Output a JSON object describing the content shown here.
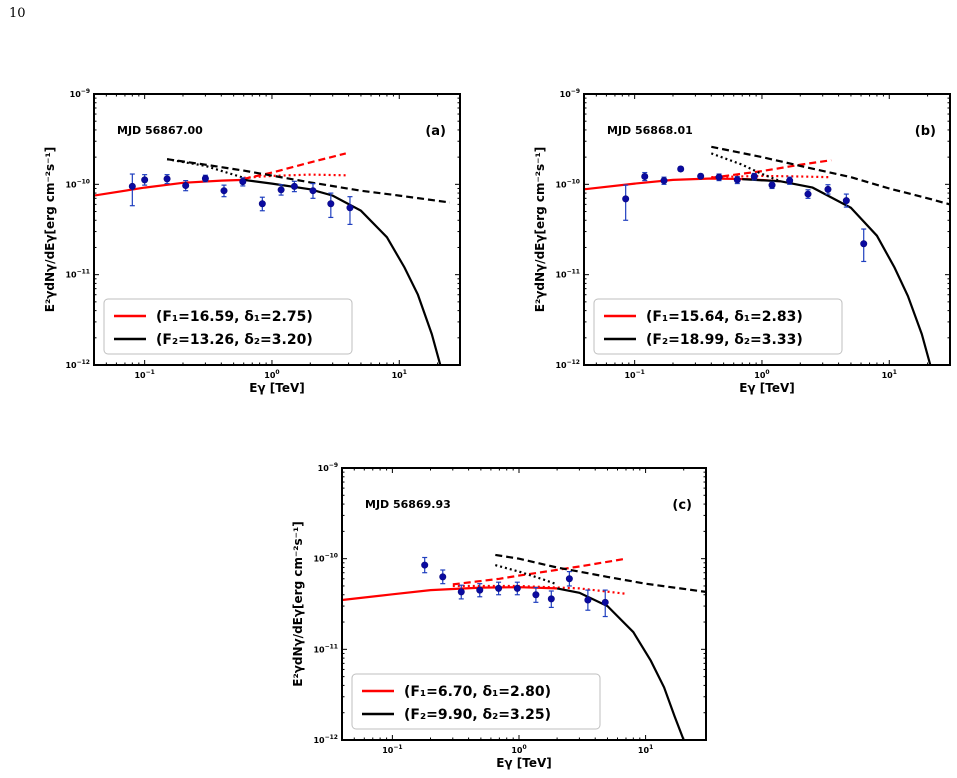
{
  "page_number": "10",
  "chart_data": [
    {
      "type": "scatter",
      "panel_label": "(a)",
      "annotation": "MJD 56867.00",
      "xlabel": "E_γ [TeV]",
      "ylabel": "E²_γ dN_γ/dE_γ [erg cm⁻² s⁻¹]",
      "xscale": "log",
      "yscale": "log",
      "xlim": [
        0.04,
        30
      ],
      "ylim": [
        1e-12,
        1e-09
      ],
      "x_ticks": [
        {
          "v": 0.1,
          "b": "10",
          "e": "−1"
        },
        {
          "v": 1,
          "b": "10",
          "e": "0"
        },
        {
          "v": 10,
          "b": "10",
          "e": "1"
        }
      ],
      "y_ticks": [
        {
          "v": 1e-12,
          "b": "10",
          "e": "−12"
        },
        {
          "v": 1e-11,
          "b": "10",
          "e": "−11"
        },
        {
          "v": 1e-10,
          "b": "10",
          "e": "−10"
        },
        {
          "v": 1e-09,
          "b": "10",
          "e": "−9"
        }
      ],
      "points": [
        {
          "x": 0.08,
          "y": 9.5e-11,
          "lo": 5.8e-11,
          "hi": 1.3e-10
        },
        {
          "x": 0.1,
          "y": 1.12e-10,
          "lo": 9.8e-11,
          "hi": 1.28e-10
        },
        {
          "x": 0.15,
          "y": 1.15e-10,
          "lo": 1.02e-10,
          "hi": 1.28e-10
        },
        {
          "x": 0.21,
          "y": 9.7e-11,
          "lo": 8.5e-11,
          "hi": 1.1e-10
        },
        {
          "x": 0.3,
          "y": 1.16e-10,
          "lo": 1.07e-10,
          "hi": 1.26e-10
        },
        {
          "x": 0.42,
          "y": 8.5e-11,
          "lo": 7.3e-11,
          "hi": 9.8e-11
        },
        {
          "x": 0.59,
          "y": 1.07e-10,
          "lo": 9.6e-11,
          "hi": 1.18e-10
        },
        {
          "x": 0.84,
          "y": 6.1e-11,
          "lo": 5.1e-11,
          "hi": 7.2e-11
        },
        {
          "x": 1.18,
          "y": 8.7e-11,
          "lo": 7.6e-11,
          "hi": 9.9e-11
        },
        {
          "x": 1.5,
          "y": 9.5e-11,
          "lo": 8.3e-11,
          "hi": 1.08e-10
        },
        {
          "x": 2.1,
          "y": 8.5e-11,
          "lo": 7e-11,
          "hi": 1.02e-10
        },
        {
          "x": 2.9,
          "y": 6.1e-11,
          "lo": 4.3e-11,
          "hi": 8e-11
        },
        {
          "x": 4.1,
          "y": 5.5e-11,
          "lo": 3.6e-11,
          "hi": 7.3e-11
        }
      ],
      "red_solid": [
        [
          0.04,
          7.5e-11
        ],
        [
          0.1,
          9.2e-11
        ],
        [
          0.2,
          1.04e-10
        ],
        [
          0.4,
          1.1e-10
        ],
        [
          0.6,
          1.12e-10
        ]
      ],
      "red_dashed": [
        [
          0.6,
          1.15e-10
        ],
        [
          1,
          1.35e-10
        ],
        [
          2,
          1.75e-10
        ],
        [
          3.8,
          2.2e-10
        ]
      ],
      "red_dotted": [
        [
          0.6,
          1.18e-10
        ],
        [
          1,
          1.24e-10
        ],
        [
          2,
          1.28e-10
        ],
        [
          3.8,
          1.26e-10
        ]
      ],
      "black_solid": [
        [
          0.6,
          1.12e-10
        ],
        [
          1,
          1.02e-10
        ],
        [
          2,
          8.8e-11
        ],
        [
          3,
          7.5e-11
        ],
        [
          5,
          5.1e-11
        ],
        [
          8,
          2.6e-11
        ],
        [
          11,
          1.2e-11
        ],
        [
          14,
          6e-12
        ],
        [
          18,
          2.2e-12
        ],
        [
          21,
          1e-12
        ]
      ],
      "black_dashed": [
        [
          0.15,
          1.9e-10
        ],
        [
          0.3,
          1.65e-10
        ],
        [
          0.6,
          1.42e-10
        ],
        [
          1,
          1.25e-10
        ],
        [
          2,
          1.05e-10
        ],
        [
          5,
          8.5e-11
        ],
        [
          10,
          7.5e-11
        ],
        [
          25,
          6.3e-11
        ]
      ],
      "black_dotted": [
        [
          0.15,
          1.9e-10
        ],
        [
          0.3,
          1.6e-10
        ],
        [
          0.6,
          1.18e-10
        ]
      ],
      "legend": [
        {
          "color": "#ff0000",
          "text": "(F₁=16.59, δ₁=2.75)"
        },
        {
          "color": "#000000",
          "text": "(F₂=13.26, δ₂=3.20)"
        }
      ]
    },
    {
      "type": "scatter",
      "panel_label": "(b)",
      "annotation": "MJD 56868.01",
      "xlabel": "E_γ [TeV]",
      "ylabel": "E²_γ dN_γ/dE_γ [erg cm⁻² s⁻¹]",
      "xscale": "log",
      "yscale": "log",
      "xlim": [
        0.04,
        30
      ],
      "ylim": [
        1e-12,
        1e-09
      ],
      "x_ticks": [
        {
          "v": 0.1,
          "b": "10",
          "e": "−1"
        },
        {
          "v": 1,
          "b": "10",
          "e": "0"
        },
        {
          "v": 10,
          "b": "10",
          "e": "1"
        }
      ],
      "y_ticks": [
        {
          "v": 1e-12,
          "b": "10",
          "e": "−12"
        },
        {
          "v": 1e-11,
          "b": "10",
          "e": "−11"
        },
        {
          "v": 1e-10,
          "b": "10",
          "e": "−10"
        },
        {
          "v": 1e-09,
          "b": "10",
          "e": "−9"
        }
      ],
      "points": [
        {
          "x": 0.085,
          "y": 6.9e-11,
          "lo": 4e-11,
          "hi": 9.8e-11
        },
        {
          "x": 0.12,
          "y": 1.22e-10,
          "lo": 1.1e-10,
          "hi": 1.35e-10
        },
        {
          "x": 0.17,
          "y": 1.1e-10,
          "lo": 1e-10,
          "hi": 1.2e-10
        },
        {
          "x": 0.23,
          "y": 1.48e-10,
          "lo": 1.4e-10,
          "hi": 1.56e-10
        },
        {
          "x": 0.33,
          "y": 1.23e-10,
          "lo": 1.16e-10,
          "hi": 1.3e-10
        },
        {
          "x": 0.46,
          "y": 1.2e-10,
          "lo": 1.1e-10,
          "hi": 1.3e-10
        },
        {
          "x": 0.64,
          "y": 1.12e-10,
          "lo": 1.02e-10,
          "hi": 1.22e-10
        },
        {
          "x": 0.87,
          "y": 1.22e-10,
          "lo": 1.12e-10,
          "hi": 1.32e-10
        },
        {
          "x": 1.2,
          "y": 9.8e-11,
          "lo": 9e-11,
          "hi": 1.06e-10
        },
        {
          "x": 1.65,
          "y": 1.1e-10,
          "lo": 1e-10,
          "hi": 1.2e-10
        },
        {
          "x": 2.3,
          "y": 7.8e-11,
          "lo": 7e-11,
          "hi": 8.7e-11
        },
        {
          "x": 3.3,
          "y": 8.8e-11,
          "lo": 7.8e-11,
          "hi": 9.9e-11
        },
        {
          "x": 4.6,
          "y": 6.6e-11,
          "lo": 5.6e-11,
          "hi": 7.8e-11
        },
        {
          "x": 6.3,
          "y": 2.2e-11,
          "lo": 1.4e-11,
          "hi": 3.2e-11
        }
      ],
      "red_solid": [
        [
          0.04,
          8.8e-11
        ],
        [
          0.1,
          1.02e-10
        ],
        [
          0.2,
          1.12e-10
        ],
        [
          0.4,
          1.16e-10
        ],
        [
          0.8,
          1.14e-10
        ],
        [
          1.4,
          1.08e-10
        ]
      ],
      "red_dashed": [
        [
          0.4,
          1.18e-10
        ],
        [
          1,
          1.4e-10
        ],
        [
          2,
          1.65e-10
        ],
        [
          3.5,
          1.85e-10
        ]
      ],
      "red_dotted": [
        [
          0.4,
          1.2e-10
        ],
        [
          1,
          1.24e-10
        ],
        [
          2,
          1.22e-10
        ],
        [
          3.5,
          1.2e-10
        ]
      ],
      "black_solid": [
        [
          0.7,
          1.14e-10
        ],
        [
          1.4,
          1.08e-10
        ],
        [
          2.5,
          9.2e-11
        ],
        [
          5,
          5.5e-11
        ],
        [
          8,
          2.7e-11
        ],
        [
          11,
          1.2e-11
        ],
        [
          14,
          5.8e-12
        ],
        [
          18,
          2.2e-12
        ],
        [
          21,
          1e-12
        ]
      ],
      "black_dashed": [
        [
          0.4,
          2.6e-10
        ],
        [
          1,
          2e-10
        ],
        [
          2,
          1.6e-10
        ],
        [
          5,
          1.2e-10
        ],
        [
          10,
          9e-11
        ],
        [
          20,
          7e-11
        ],
        [
          30,
          6e-11
        ]
      ],
      "black_dotted": [
        [
          0.4,
          2.2e-10
        ],
        [
          0.7,
          1.65e-10
        ],
        [
          1,
          1.3e-10
        ],
        [
          1.4,
          1.08e-10
        ]
      ],
      "legend": [
        {
          "color": "#ff0000",
          "text": "(F₁=15.64, δ₁=2.83)"
        },
        {
          "color": "#000000",
          "text": "(F₂=18.99, δ₂=3.33)"
        }
      ]
    },
    {
      "type": "scatter",
      "panel_label": "(c)",
      "annotation": "MJD 56869.93",
      "xlabel": "E_γ [TeV]",
      "ylabel": "E²_γ dN_γ/dE_γ [erg cm⁻² s⁻¹]",
      "xscale": "log",
      "yscale": "log",
      "xlim": [
        0.04,
        30
      ],
      "ylim": [
        1e-12,
        1e-09
      ],
      "x_ticks": [
        {
          "v": 0.1,
          "b": "10",
          "e": "−1"
        },
        {
          "v": 1,
          "b": "10",
          "e": "0"
        },
        {
          "v": 10,
          "b": "10",
          "e": "1"
        }
      ],
      "y_ticks": [
        {
          "v": 1e-12,
          "b": "10",
          "e": "−12"
        },
        {
          "v": 1e-11,
          "b": "10",
          "e": "−11"
        },
        {
          "v": 1e-10,
          "b": "10",
          "e": "−10"
        },
        {
          "v": 1e-09,
          "b": "10",
          "e": "−9"
        }
      ],
      "points": [
        {
          "x": 0.18,
          "y": 8.5e-11,
          "lo": 7e-11,
          "hi": 1.03e-10
        },
        {
          "x": 0.25,
          "y": 6.3e-11,
          "lo": 5.3e-11,
          "hi": 7.5e-11
        },
        {
          "x": 0.35,
          "y": 4.3e-11,
          "lo": 3.6e-11,
          "hi": 5.1e-11
        },
        {
          "x": 0.49,
          "y": 4.5e-11,
          "lo": 3.8e-11,
          "hi": 5.3e-11
        },
        {
          "x": 0.69,
          "y": 4.7e-11,
          "lo": 4e-11,
          "hi": 5.5e-11
        },
        {
          "x": 0.97,
          "y": 4.7e-11,
          "lo": 4e-11,
          "hi": 5.5e-11
        },
        {
          "x": 1.36,
          "y": 4e-11,
          "lo": 3.3e-11,
          "hi": 4.8e-11
        },
        {
          "x": 1.8,
          "y": 3.6e-11,
          "lo": 2.9e-11,
          "hi": 4.4e-11
        },
        {
          "x": 2.5,
          "y": 6e-11,
          "lo": 5e-11,
          "hi": 7.2e-11
        },
        {
          "x": 3.5,
          "y": 3.5e-11,
          "lo": 2.7e-11,
          "hi": 4.5e-11
        },
        {
          "x": 4.8,
          "y": 3.3e-11,
          "lo": 2.3e-11,
          "hi": 4.5e-11
        }
      ],
      "red_solid": [
        [
          0.04,
          3.5e-11
        ],
        [
          0.1,
          4.05e-11
        ],
        [
          0.2,
          4.5e-11
        ],
        [
          0.5,
          4.8e-11
        ],
        [
          1,
          4.85e-11
        ],
        [
          2,
          4.7e-11
        ]
      ],
      "red_dashed": [
        [
          0.3,
          5.2e-11
        ],
        [
          0.7,
          6e-11
        ],
        [
          1,
          6.5e-11
        ],
        [
          3,
          8.2e-11
        ],
        [
          7,
          1e-10
        ]
      ],
      "red_dotted": [
        [
          0.3,
          5e-11
        ],
        [
          1,
          5e-11
        ],
        [
          3,
          4.7e-11
        ],
        [
          7,
          4.1e-11
        ]
      ],
      "black_solid": [
        [
          2,
          4.7e-11
        ],
        [
          3,
          4.2e-11
        ],
        [
          5,
          3e-11
        ],
        [
          8,
          1.55e-11
        ],
        [
          11,
          7.5e-12
        ],
        [
          14,
          3.8e-12
        ],
        [
          17,
          1.8e-12
        ],
        [
          20,
          1e-12
        ]
      ],
      "black_dashed": [
        [
          0.65,
          1.1e-10
        ],
        [
          1,
          1e-10
        ],
        [
          2,
          8e-11
        ],
        [
          5,
          6.3e-11
        ],
        [
          10,
          5.3e-11
        ],
        [
          30,
          4.3e-11
        ]
      ],
      "black_dotted": [
        [
          0.65,
          8.5e-11
        ],
        [
          1,
          7.2e-11
        ],
        [
          1.5,
          6e-11
        ],
        [
          2,
          5.2e-11
        ]
      ],
      "legend": [
        {
          "color": "#ff0000",
          "text": "(F₁=6.70, δ₁=2.80)"
        },
        {
          "color": "#000000",
          "text": "(F₂=9.90, δ₂=3.25)"
        }
      ]
    }
  ]
}
